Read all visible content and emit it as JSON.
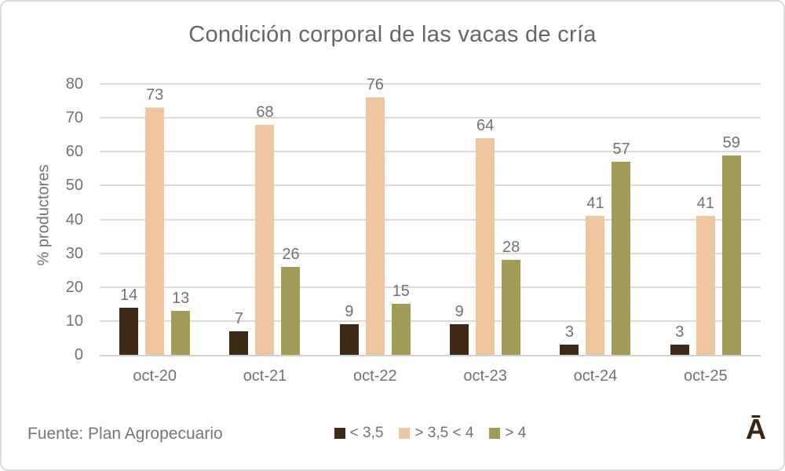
{
  "chart_data": {
    "type": "bar",
    "title": "Condición corporal de las vacas de cría",
    "ylabel": "% productores",
    "xlabel": "",
    "categories": [
      "oct-20",
      "oct-21",
      "oct-22",
      "oct-23",
      "oct-24",
      "oct-25"
    ],
    "series": [
      {
        "name": "< 3,5",
        "color": "#3e2a17",
        "values": [
          14,
          7,
          9,
          9,
          3,
          3
        ]
      },
      {
        "name": "> 3,5 < 4",
        "color": "#eec7a0",
        "values": [
          73,
          68,
          76,
          64,
          41,
          41
        ]
      },
      {
        "name": "> 4",
        "color": "#a29c58",
        "values": [
          13,
          26,
          15,
          28,
          57,
          59
        ]
      }
    ],
    "ylim": [
      0,
      80
    ],
    "ytick_step": 10,
    "grid": true,
    "legend_position": "bottom",
    "value_labels": true
  },
  "footer": {
    "source": "Fuente: Plan Agropecuario",
    "logo": "Ā"
  },
  "colors": {
    "grid": "#dddbda",
    "axis": "#d2d0cf",
    "tick_text": "#757171",
    "title_text": "#6b6366",
    "source_text": "#7b7474",
    "logo_color": "#3a2513",
    "border": "#dcdbda"
  }
}
